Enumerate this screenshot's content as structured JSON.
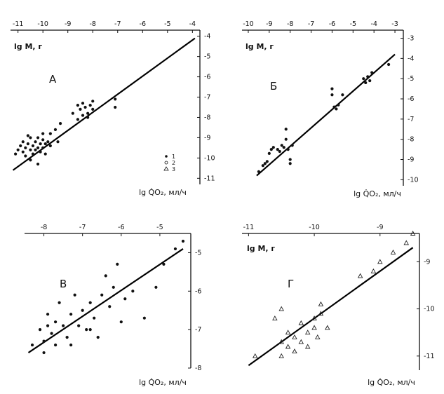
{
  "chart_data": [
    {
      "type": "scatter",
      "panel_label": "А",
      "ylabel": "lg M, г",
      "xlabel": "lg Q̇O₂, мл/ч",
      "x_ticks": [
        "-11",
        "-10",
        "-9",
        "-8",
        "-7",
        "-6",
        "-5",
        "-4"
      ],
      "y_ticks": [
        "-4",
        "-5",
        "-6",
        "-7",
        "-8",
        "-9",
        "-10",
        "-11"
      ],
      "xlim": [
        -11.3,
        -3.7
      ],
      "ylim": [
        -11.3,
        -3.7
      ],
      "legend": [
        "1",
        "2",
        "3"
      ],
      "fit_line": [
        [
          -11.2,
          -10.6
        ],
        [
          -3.9,
          -4.1
        ]
      ],
      "points": [
        [
          -11.1,
          -9.8
        ],
        [
          -11.0,
          -9.6
        ],
        [
          -10.9,
          -9.4
        ],
        [
          -10.8,
          -9.7
        ],
        [
          -10.8,
          -9.2
        ],
        [
          -10.7,
          -9.5
        ],
        [
          -10.7,
          -9.9
        ],
        [
          -10.6,
          -9.3
        ],
        [
          -10.5,
          -9.6
        ],
        [
          -10.5,
          -9.0
        ],
        [
          -10.4,
          -9.4
        ],
        [
          -10.4,
          -9.8
        ],
        [
          -10.3,
          -9.2
        ],
        [
          -10.3,
          -9.6
        ],
        [
          -10.2,
          -9.0
        ],
        [
          -10.2,
          -9.5
        ],
        [
          -10.1,
          -9.3
        ],
        [
          -10.1,
          -9.7
        ],
        [
          -10.0,
          -9.1
        ],
        [
          -10.0,
          -9.5
        ],
        [
          -9.9,
          -9.3
        ],
        [
          -9.9,
          -9.8
        ],
        [
          -9.8,
          -9.2
        ],
        [
          -9.7,
          -9.4
        ],
        [
          -10.5,
          -10.1
        ],
        [
          -10.2,
          -10.3
        ],
        [
          -10.6,
          -8.9
        ],
        [
          -10.0,
          -8.8
        ],
        [
          -8.6,
          -7.4
        ],
        [
          -8.5,
          -7.6
        ],
        [
          -8.4,
          -7.3
        ],
        [
          -8.3,
          -7.5
        ],
        [
          -8.2,
          -7.8
        ],
        [
          -8.1,
          -7.4
        ],
        [
          -8.0,
          -7.6
        ],
        [
          -8.4,
          -7.9
        ],
        [
          -8.2,
          -8.0
        ],
        [
          -8.6,
          -8.1
        ],
        [
          -8.8,
          -7.8
        ],
        [
          -8.0,
          -7.2
        ],
        [
          -7.1,
          -7.1
        ],
        [
          -7.1,
          -7.5
        ],
        [
          -9.3,
          -8.3
        ],
        [
          -9.5,
          -8.6
        ],
        [
          -9.4,
          -9.2
        ],
        [
          -9.7,
          -8.8
        ]
      ]
    },
    {
      "type": "scatter",
      "panel_label": "Б",
      "ylabel": "lg M, г",
      "xlabel": "lg Q̇O₂, мл/ч",
      "x_ticks": [
        "-10",
        "-9",
        "-8",
        "-7",
        "-6",
        "-5",
        "-4",
        "-3"
      ],
      "y_ticks": [
        "-3",
        "-4",
        "-5",
        "-6",
        "-7",
        "-8",
        "-9",
        "-10"
      ],
      "xlim": [
        -10.3,
        -2.6
      ],
      "ylim": [
        -10.3,
        -2.6
      ],
      "fit_line": [
        [
          -9.6,
          -9.8
        ],
        [
          -3.0,
          -3.8
        ]
      ],
      "points": [
        [
          -9.5,
          -9.6
        ],
        [
          -9.3,
          -9.3
        ],
        [
          -9.2,
          -9.2
        ],
        [
          -9.1,
          -9.1
        ],
        [
          -9.0,
          -8.7
        ],
        [
          -8.9,
          -8.5
        ],
        [
          -8.8,
          -8.4
        ],
        [
          -8.6,
          -8.5
        ],
        [
          -8.4,
          -8.3
        ],
        [
          -8.3,
          -8.4
        ],
        [
          -8.2,
          -8.0
        ],
        [
          -8.2,
          -7.5
        ],
        [
          -8.1,
          -8.5
        ],
        [
          -8.0,
          -9.2
        ],
        [
          -7.9,
          -8.3
        ],
        [
          -6.0,
          -5.8
        ],
        [
          -6.0,
          -5.5
        ],
        [
          -5.9,
          -6.4
        ],
        [
          -5.8,
          -6.5
        ],
        [
          -5.7,
          -6.3
        ],
        [
          -5.5,
          -5.8
        ],
        [
          -4.5,
          -5.0
        ],
        [
          -4.4,
          -5.2
        ],
        [
          -4.3,
          -4.9
        ],
        [
          -4.2,
          -5.1
        ],
        [
          -4.1,
          -4.7
        ],
        [
          -3.3,
          -4.3
        ],
        [
          -8.5,
          -8.6
        ],
        [
          -8.0,
          -9.0
        ]
      ]
    },
    {
      "type": "scatter",
      "panel_label": "В",
      "ylabel": "",
      "xlabel": "lg Q̇O₂, мл/ч",
      "x_ticks": [
        "-8",
        "-7",
        "-6",
        "-5"
      ],
      "y_ticks": [
        "-5",
        "-6",
        "-7",
        "-8"
      ],
      "xlim": [
        -8.5,
        -4.2
      ],
      "ylim": [
        -8.0,
        -4.5
      ],
      "fit_line": [
        [
          -8.4,
          -7.6
        ],
        [
          -4.4,
          -4.9
        ]
      ],
      "points": [
        [
          -8.3,
          -7.4
        ],
        [
          -8.1,
          -7.0
        ],
        [
          -8.0,
          -7.3
        ],
        [
          -7.9,
          -6.6
        ],
        [
          -7.8,
          -7.1
        ],
        [
          -7.7,
          -6.8
        ],
        [
          -7.7,
          -7.4
        ],
        [
          -7.6,
          -6.3
        ],
        [
          -7.5,
          -6.9
        ],
        [
          -7.4,
          -7.2
        ],
        [
          -7.3,
          -6.6
        ],
        [
          -7.2,
          -6.1
        ],
        [
          -7.1,
          -6.9
        ],
        [
          -7.0,
          -6.5
        ],
        [
          -6.9,
          -7.0
        ],
        [
          -6.8,
          -6.3
        ],
        [
          -6.7,
          -6.7
        ],
        [
          -6.6,
          -7.2
        ],
        [
          -6.5,
          -6.1
        ],
        [
          -6.4,
          -5.6
        ],
        [
          -6.3,
          -6.4
        ],
        [
          -6.2,
          -5.9
        ],
        [
          -6.1,
          -5.3
        ],
        [
          -6.0,
          -6.8
        ],
        [
          -5.9,
          -6.2
        ],
        [
          -5.7,
          -6.0
        ],
        [
          -5.4,
          -6.7
        ],
        [
          -5.1,
          -5.9
        ],
        [
          -4.9,
          -5.3
        ],
        [
          -4.6,
          -4.9
        ],
        [
          -4.4,
          -4.7
        ],
        [
          -7.9,
          -6.9
        ],
        [
          -8.0,
          -7.6
        ],
        [
          -7.3,
          -7.4
        ],
        [
          -6.8,
          -7.0
        ]
      ]
    },
    {
      "type": "scatter",
      "panel_label": "Г",
      "ylabel": "lg M, г",
      "xlabel": "lg Q̇O₂, мл/ч",
      "x_ticks": [
        "-11",
        "-10",
        "-9"
      ],
      "y_ticks": [
        "-9",
        "-10",
        "-11"
      ],
      "xlim": [
        -11.1,
        -8.4
      ],
      "ylim": [
        -11.3,
        -8.4
      ],
      "fit_line": [
        [
          -11.0,
          -11.2
        ],
        [
          -8.5,
          -8.7
        ]
      ],
      "points": [
        [
          -10.9,
          -11.0
        ],
        [
          -10.6,
          -10.2
        ],
        [
          -10.5,
          -10.7
        ],
        [
          -10.5,
          -11.0
        ],
        [
          -10.4,
          -10.8
        ],
        [
          -10.4,
          -10.5
        ],
        [
          -10.3,
          -10.9
        ],
        [
          -10.3,
          -10.6
        ],
        [
          -10.2,
          -10.7
        ],
        [
          -10.2,
          -10.3
        ],
        [
          -10.1,
          -10.5
        ],
        [
          -10.1,
          -10.8
        ],
        [
          -10.0,
          -10.2
        ],
        [
          -10.0,
          -10.4
        ],
        [
          -9.95,
          -10.6
        ],
        [
          -9.9,
          -10.1
        ],
        [
          -9.9,
          -9.9
        ],
        [
          -9.8,
          -10.4
        ],
        [
          -9.3,
          -9.3
        ],
        [
          -9.1,
          -9.2
        ],
        [
          -9.0,
          -9.0
        ],
        [
          -8.8,
          -8.8
        ],
        [
          -8.6,
          -8.6
        ],
        [
          -8.5,
          -8.4
        ],
        [
          -10.5,
          -10.0
        ]
      ]
    }
  ]
}
